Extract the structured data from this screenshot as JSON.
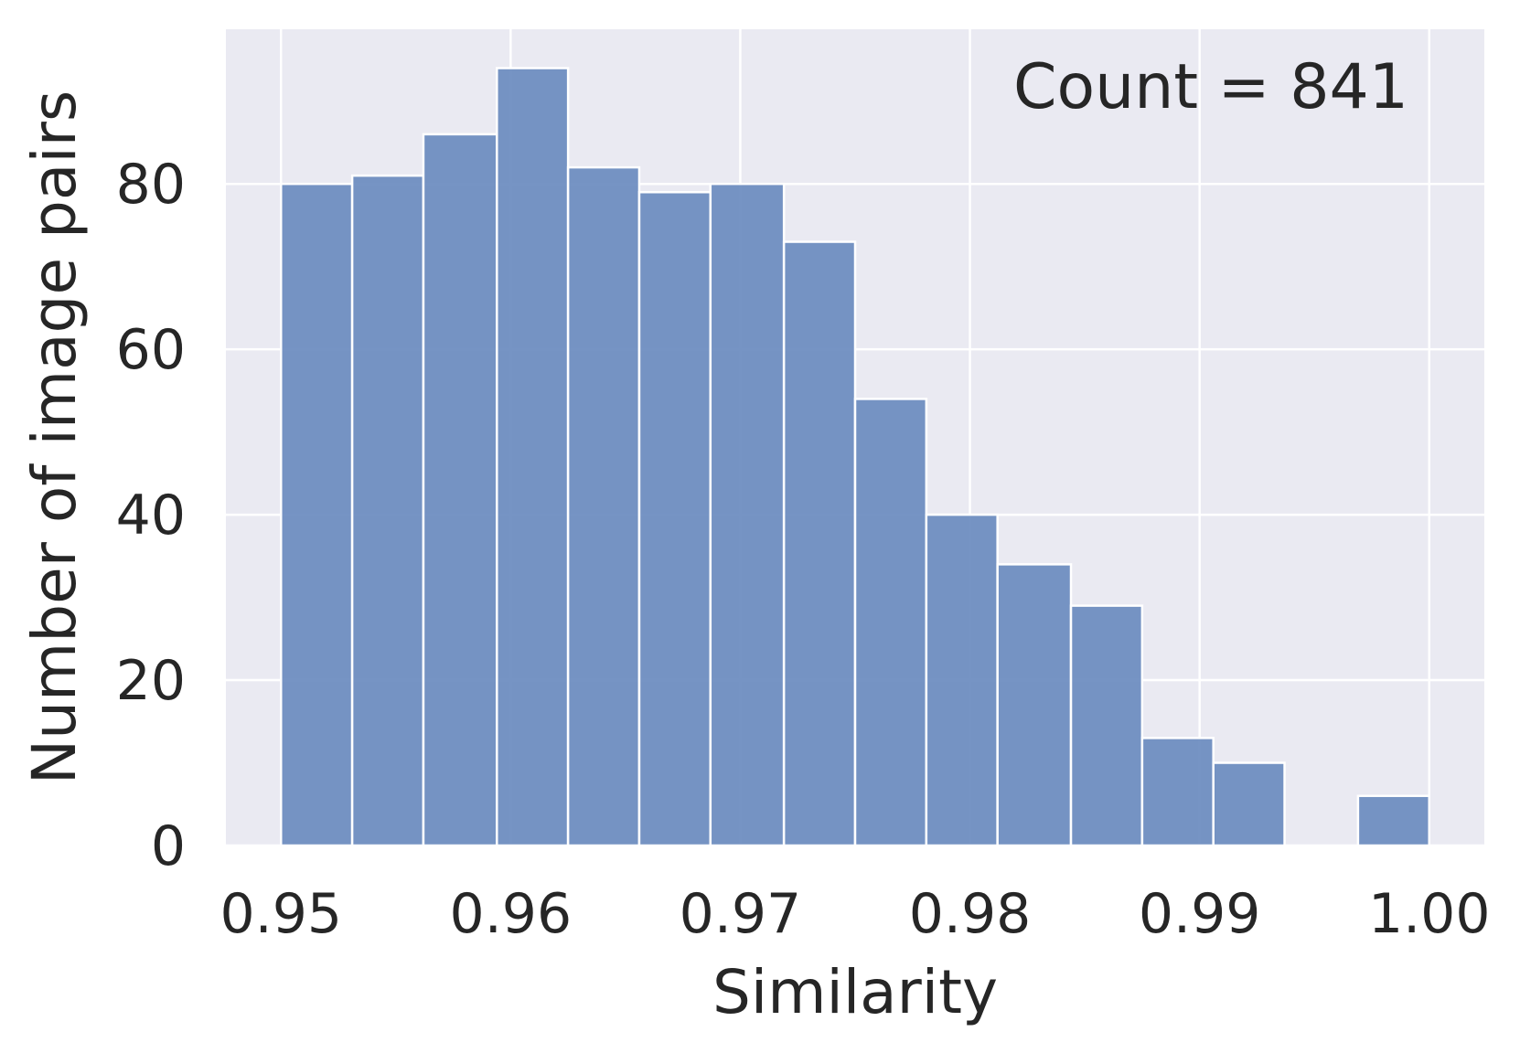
{
  "chart_data": {
    "type": "bar",
    "histogram": true,
    "bins": [
      {
        "x0": 0.95,
        "x1": 0.9531,
        "count": 80
      },
      {
        "x0": 0.9531,
        "x1": 0.9562,
        "count": 81
      },
      {
        "x0": 0.9562,
        "x1": 0.9594,
        "count": 86
      },
      {
        "x0": 0.9594,
        "x1": 0.9625,
        "count": 94
      },
      {
        "x0": 0.9625,
        "x1": 0.9656,
        "count": 82
      },
      {
        "x0": 0.9656,
        "x1": 0.9687,
        "count": 79
      },
      {
        "x0": 0.9687,
        "x1": 0.9719,
        "count": 80
      },
      {
        "x0": 0.9719,
        "x1": 0.975,
        "count": 73
      },
      {
        "x0": 0.975,
        "x1": 0.9781,
        "count": 54
      },
      {
        "x0": 0.9781,
        "x1": 0.9812,
        "count": 40
      },
      {
        "x0": 0.9812,
        "x1": 0.9844,
        "count": 34
      },
      {
        "x0": 0.9844,
        "x1": 0.9875,
        "count": 29
      },
      {
        "x0": 0.9875,
        "x1": 0.9906,
        "count": 13
      },
      {
        "x0": 0.9906,
        "x1": 0.9937,
        "count": 10
      },
      {
        "x0": 0.9937,
        "x1": 0.9969,
        "count": 0
      },
      {
        "x0": 0.9969,
        "x1": 1.0,
        "count": 6
      }
    ],
    "xlabel": "Similarity",
    "ylabel": "Number of image pairs",
    "xlim": [
      0.9476,
      1.0024
    ],
    "ylim": [
      0,
      98.7
    ],
    "xticks": [
      {
        "value": 0.95,
        "label": "0.95"
      },
      {
        "value": 0.96,
        "label": "0.96"
      },
      {
        "value": 0.97,
        "label": "0.97"
      },
      {
        "value": 0.98,
        "label": "0.98"
      },
      {
        "value": 0.99,
        "label": "0.99"
      },
      {
        "value": 1.0,
        "label": "1.00"
      }
    ],
    "yticks": [
      {
        "value": 0,
        "label": "0"
      },
      {
        "value": 20,
        "label": "20"
      },
      {
        "value": 40,
        "label": "40"
      },
      {
        "value": 60,
        "label": "60"
      },
      {
        "value": 80,
        "label": "80"
      }
    ],
    "annotation": "Count = 841",
    "grid": true,
    "colors": {
      "bar": "#6a8bbf",
      "bar_edge": "#ffffff",
      "plot_background": "#eaeaf2",
      "grid": "#ffffff",
      "text": "#262626"
    }
  }
}
